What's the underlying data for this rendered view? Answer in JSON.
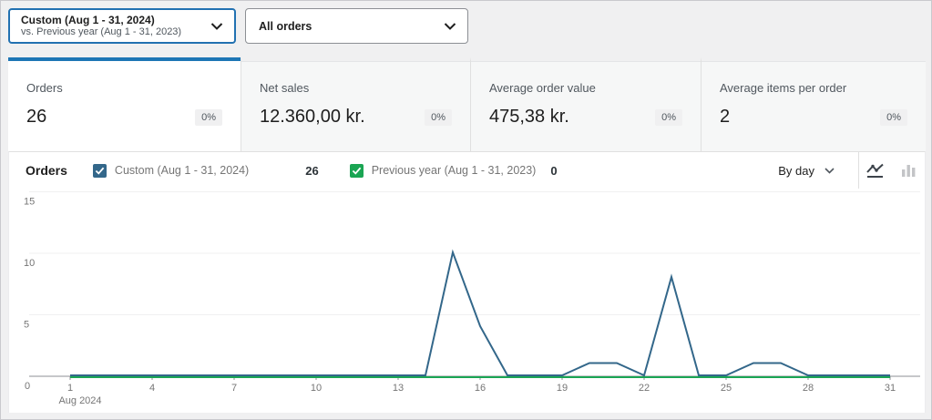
{
  "colors": {
    "accent_blue": "#1d76b5",
    "focus_blue": "#2271b1",
    "series_current": "#33678a",
    "series_previous": "#1aa553",
    "axis_grey": "#8c8f94",
    "grid_grey": "#f0f0f1"
  },
  "toolbar": {
    "date_range": {
      "primary": "Custom (Aug 1 - 31, 2024)",
      "secondary": "vs. Previous year (Aug 1 - 31, 2023)"
    },
    "order_filter": "All orders"
  },
  "summary_tiles": [
    {
      "label": "Orders",
      "value": "26",
      "delta": "0%",
      "selected": true
    },
    {
      "label": "Net sales",
      "value": "12.360,00 kr.",
      "delta": "0%",
      "selected": false
    },
    {
      "label": "Average order value",
      "value": "475,38 kr.",
      "delta": "0%",
      "selected": false
    },
    {
      "label": "Average items per order",
      "value": "2",
      "delta": "0%",
      "selected": false
    }
  ],
  "chart_header": {
    "title": "Orders",
    "legend": [
      {
        "label": "Custom (Aug 1 - 31, 2024)",
        "total": "26",
        "color": "#33678a",
        "checked": true
      },
      {
        "label": "Previous year (Aug 1 - 31, 2023)",
        "total": "0",
        "color": "#1aa553",
        "checked": true
      }
    ],
    "interval_label": "By day",
    "chart_types": [
      "line-chart",
      "bar-chart"
    ],
    "active_chart_type": "line-chart"
  },
  "chart_data": {
    "type": "line",
    "title": "Orders by day",
    "x": [
      1,
      2,
      3,
      4,
      5,
      6,
      7,
      8,
      9,
      10,
      11,
      12,
      13,
      14,
      15,
      16,
      17,
      18,
      19,
      20,
      21,
      22,
      23,
      24,
      25,
      26,
      27,
      28,
      29,
      30,
      31
    ],
    "x_tick_labels": [
      1,
      4,
      7,
      10,
      13,
      16,
      19,
      22,
      25,
      28,
      31
    ],
    "x_axis_secondary_label": "Aug 2024",
    "y_ticks": [
      0,
      5,
      10,
      15
    ],
    "ylim": [
      0,
      15
    ],
    "grid": true,
    "legend_position": "top",
    "series": [
      {
        "name": "Custom (Aug 1 - 31, 2024)",
        "color": "#33678a",
        "values": [
          0,
          0,
          0,
          0,
          0,
          0,
          0,
          0,
          0,
          0,
          0,
          0,
          0,
          0,
          10,
          4,
          0,
          0,
          0,
          1,
          1,
          0,
          8,
          0,
          0,
          1,
          1,
          0,
          0,
          0,
          0
        ]
      },
      {
        "name": "Previous year (Aug 1 - 31, 2023)",
        "color": "#1aa553",
        "values": [
          0,
          0,
          0,
          0,
          0,
          0,
          0,
          0,
          0,
          0,
          0,
          0,
          0,
          0,
          0,
          0,
          0,
          0,
          0,
          0,
          0,
          0,
          0,
          0,
          0,
          0,
          0,
          0,
          0,
          0,
          0
        ]
      }
    ]
  }
}
